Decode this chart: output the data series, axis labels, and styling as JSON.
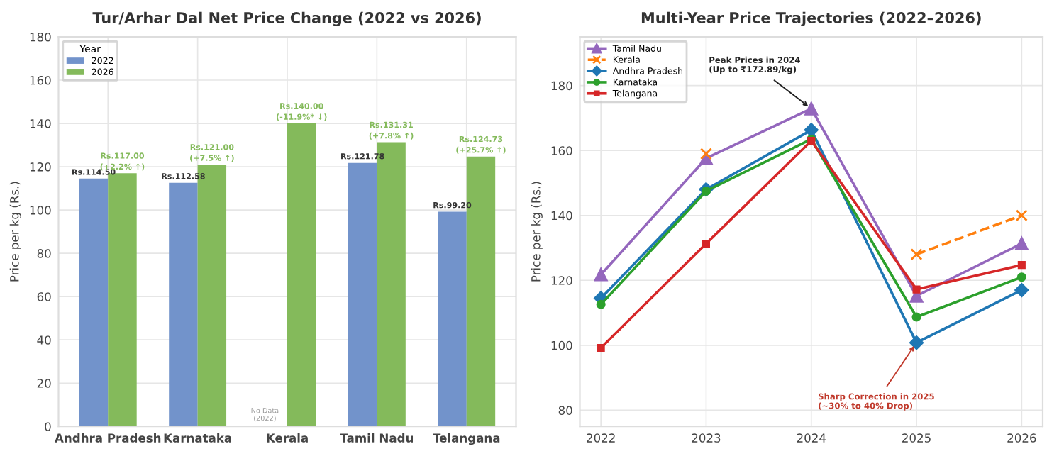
{
  "chart_data": [
    {
      "type": "bar",
      "title": "Tur/Arhar Dal Net Price Change (2022 vs 2026)",
      "ylabel": "Price per kg (Rs.)",
      "categories": [
        "Andhra Pradesh",
        "Karnataka",
        "Kerala",
        "Tamil Nadu",
        "Telangana"
      ],
      "series": [
        {
          "name": "2022",
          "color": "#7293cb",
          "values": [
            114.5,
            112.58,
            null,
            121.78,
            99.2
          ],
          "value_labels": [
            "Rs.114.50",
            "Rs.112.58",
            null,
            "Rs.121.78",
            "Rs.99.20"
          ]
        },
        {
          "name": "2026",
          "color": "#84ba5b",
          "values": [
            117.0,
            121.0,
            140.0,
            131.31,
            124.73
          ],
          "value_labels": [
            "Rs.117.00",
            "Rs.121.00",
            "Rs.140.00",
            "Rs.131.31",
            "Rs.124.73"
          ]
        }
      ],
      "annotations": [
        {
          "text": "No Data\n(2022)",
          "x": "Kerala",
          "y": 0
        },
        {
          "text": "(+2.2% ↑)",
          "x": "Andhra Pradesh",
          "y": 117.0
        },
        {
          "text": "(+7.5% ↑)",
          "x": "Karnataka",
          "y": 121.0
        },
        {
          "text": "(-11.9%* ↓)",
          "x": "Kerala",
          "y": 140.0
        },
        {
          "text": "(+7.8% ↑)",
          "x": "Tamil Nadu",
          "y": 131.31
        },
        {
          "text": "(+25.7% ↑)",
          "x": "Telangana",
          "y": 124.73
        }
      ],
      "ylim": [
        0,
        180
      ],
      "yticks": [
        0,
        20,
        40,
        60,
        80,
        100,
        120,
        140,
        160,
        180
      ],
      "grid": true,
      "legend": "top left",
      "legend_title": "Year"
    },
    {
      "type": "line",
      "title": "Multi-Year Price Trajectories (2022–2026)",
      "ylabel": "Price per kg (Rs.)",
      "x": [
        2022,
        2023,
        2024,
        2025,
        2026
      ],
      "series": [
        {
          "name": "Tamil Nadu",
          "color": "#9467bd",
          "marker": "triangle",
          "values": [
            121.78,
            157.6,
            172.89,
            115.2,
            131.31
          ]
        },
        {
          "name": "Kerala",
          "color": "#ff7f0e",
          "marker": "cross",
          "line_style": "dashed",
          "values": [
            null,
            159.0,
            null,
            128.0,
            140.0
          ]
        },
        {
          "name": "Andhra Pradesh",
          "color": "#1f77b4",
          "marker": "diamond",
          "values": [
            114.5,
            148.0,
            166.3,
            100.8,
            117.0
          ]
        },
        {
          "name": "Karnataka",
          "color": "#2ca02c",
          "marker": "circle",
          "values": [
            112.58,
            147.5,
            163.5,
            108.7,
            121.0
          ]
        },
        {
          "name": "Telangana",
          "color": "#d62728",
          "marker": "square",
          "values": [
            99.2,
            131.3,
            163.0,
            117.2,
            124.73
          ]
        }
      ],
      "annotations": [
        {
          "text": "Peak Prices in 2024\n(Up to ₹172.89/kg)",
          "x": 2024,
          "y": 172.89
        },
        {
          "text": "Sharp Correction in 2025\n(~30% to 40% Drop)",
          "x": 2025,
          "y": 100.8
        }
      ],
      "xlim": [
        2021.8,
        2026.2
      ],
      "xticks": [
        2022,
        2023,
        2024,
        2025,
        2026
      ],
      "ylim": [
        75,
        195
      ],
      "yticks": [
        80,
        100,
        120,
        140,
        160,
        180
      ],
      "grid": true,
      "legend": "top left"
    }
  ]
}
